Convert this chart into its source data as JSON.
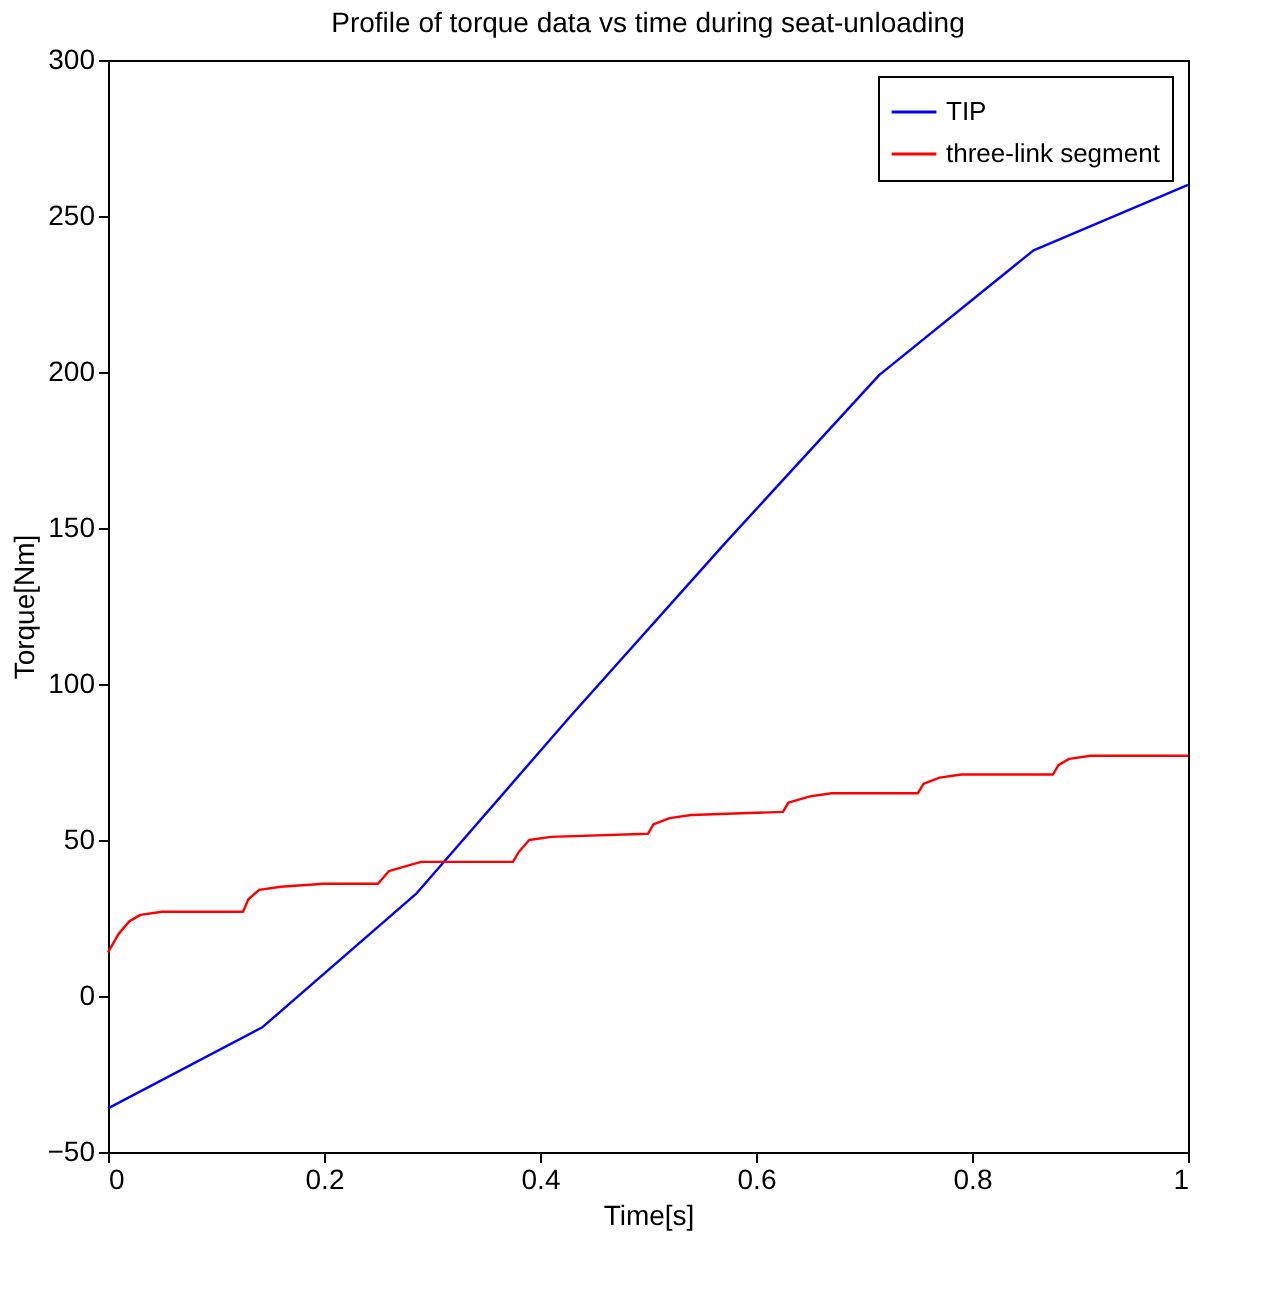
{
  "chart_data": {
    "type": "line",
    "title": "Profile of torque data vs time during seat-unloading",
    "xlabel": "Time[s]",
    "ylabel": "Torque[Nm]",
    "xlim": [
      0,
      1
    ],
    "xticks": [
      0,
      0.2,
      0.4,
      0.6,
      0.8,
      1
    ],
    "ylim": [
      -50,
      300
    ],
    "yticks": [
      -50,
      0,
      50,
      100,
      150,
      200,
      250,
      300
    ],
    "grid": false,
    "legend": "top right",
    "line_style": "solid",
    "marker": "none",
    "series": [
      {
        "name": "TIP",
        "color": "#0000ff",
        "x": [
          0,
          0.143,
          0.286,
          0.429,
          0.571,
          0.714,
          0.857,
          1
        ],
        "values": [
          -36,
          -10,
          33,
          90,
          145,
          199,
          239,
          260
        ]
      },
      {
        "name": "three-link segment",
        "color": "#ff0000",
        "x": [
          0,
          0.01,
          0.02,
          0.03,
          0.05,
          0.125,
          0.13,
          0.14,
          0.16,
          0.2,
          0.25,
          0.26,
          0.28,
          0.29,
          0.375,
          0.38,
          0.39,
          0.41,
          0.5,
          0.505,
          0.52,
          0.54,
          0.625,
          0.63,
          0.65,
          0.67,
          0.75,
          0.755,
          0.77,
          0.79,
          0.875,
          0.88,
          0.89,
          0.91,
          1
        ],
        "values": [
          14,
          20,
          24,
          26,
          27,
          27,
          31,
          34,
          35,
          36,
          36,
          40,
          42,
          43,
          43,
          46,
          50,
          51,
          52,
          55,
          57,
          58,
          59,
          62,
          64,
          65,
          65,
          68,
          70,
          71,
          71,
          74,
          76,
          77,
          77
        ]
      }
    ]
  }
}
